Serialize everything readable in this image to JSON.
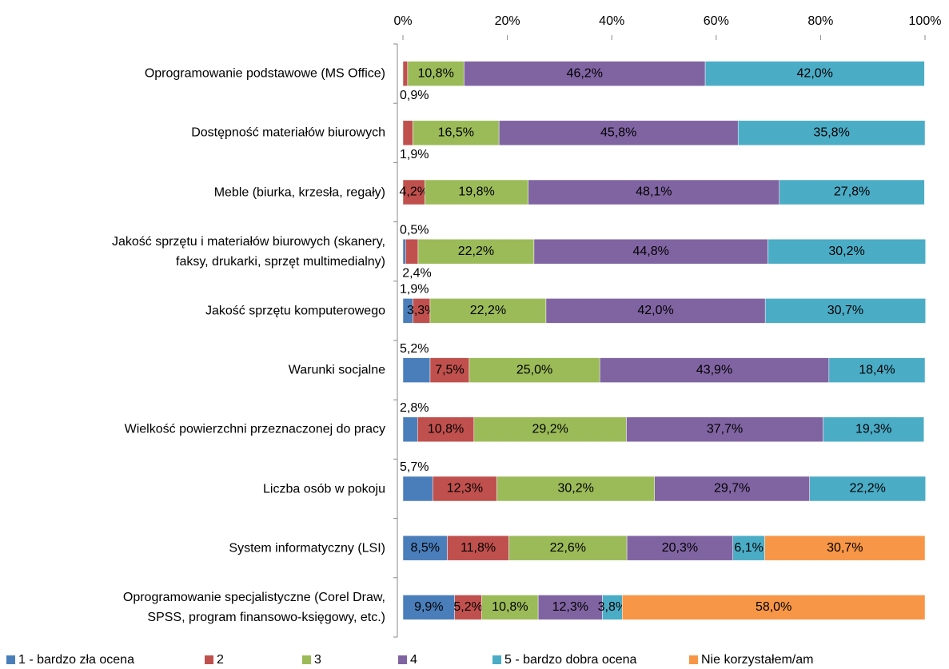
{
  "chart_data": {
    "type": "stacked-bar-horizontal",
    "categories": [
      "Oprogramowanie podstawowe (MS Office)",
      "Dostępność materiałów biurowych",
      "Meble (biurka, krzesła, regały)",
      "Jakość sprzętu i materiałów biurowych (skanery,\nfaksy, drukarki, sprzęt multimedialny)",
      "Jakość sprzętu komputerowego",
      "Warunki socjalne",
      "Wielkość powierzchni przeznaczonej do pracy",
      "Liczba osób w pokoju",
      "System informatyczny (LSI)",
      "Oprogramowanie specjalistyczne (Corel Draw,\nSPSS, program finansowo-księgowy, etc.)"
    ],
    "series": [
      {
        "name": "1 - bardzo zła ocena",
        "color": "#4a7ebb",
        "values": [
          null,
          null,
          null,
          0.5,
          1.9,
          5.2,
          2.8,
          5.7,
          8.5,
          9.9
        ],
        "value_labels": [
          null,
          null,
          null,
          "0,5%",
          "1,9%",
          "5,2%",
          "2,8%",
          "5,7%",
          "8,5%",
          "9,9%"
        ]
      },
      {
        "name": "2",
        "color": "#c0504d",
        "values": [
          0.9,
          1.9,
          4.2,
          2.4,
          3.3,
          7.5,
          10.8,
          12.3,
          11.8,
          5.2
        ],
        "value_labels": [
          "0,9%",
          "1,9%",
          "4,2%",
          "2,4%",
          "3,3%",
          "7,5%",
          "10,8%",
          "12,3%",
          "11,8%",
          "5,2%"
        ]
      },
      {
        "name": "3",
        "color": "#9bbb59",
        "values": [
          10.8,
          16.5,
          19.8,
          22.2,
          22.2,
          25.0,
          29.2,
          30.2,
          22.6,
          10.8
        ],
        "value_labels": [
          "10,8%",
          "16,5%",
          "19,8%",
          "22,2%",
          "22,2%",
          "25,0%",
          "29,2%",
          "30,2%",
          "22,6%",
          "10,8%"
        ]
      },
      {
        "name": "4",
        "color": "#8064a2",
        "values": [
          46.2,
          45.8,
          48.1,
          44.8,
          42.0,
          43.9,
          37.7,
          29.7,
          20.3,
          12.3
        ],
        "value_labels": [
          "46,2%",
          "45,8%",
          "48,1%",
          "44,8%",
          "42,0%",
          "43,9%",
          "37,7%",
          "29,7%",
          "20,3%",
          "12,3%"
        ]
      },
      {
        "name": "5 - bardzo dobra ocena",
        "color": "#4bacc6",
        "values": [
          42.0,
          35.8,
          27.8,
          30.2,
          30.7,
          18.4,
          19.3,
          22.2,
          6.1,
          3.8
        ],
        "value_labels": [
          "42,0%",
          "35,8%",
          "27,8%",
          "30,2%",
          "30,7%",
          "18,4%",
          "19,3%",
          "22,2%",
          "6,1%",
          "3,8%"
        ]
      },
      {
        "name": "Nie korzystałem/am",
        "color": "#f79646",
        "values": [
          null,
          null,
          null,
          null,
          null,
          null,
          null,
          null,
          30.7,
          58.0
        ],
        "value_labels": [
          null,
          null,
          null,
          null,
          null,
          null,
          null,
          null,
          "30,7%",
          "58,0%"
        ]
      }
    ],
    "xlim": [
      0,
      100
    ],
    "xticks": [
      {
        "value": 0,
        "label": "0%"
      },
      {
        "value": 20,
        "label": "20%"
      },
      {
        "value": 40,
        "label": "40%"
      },
      {
        "value": 60,
        "label": "60%"
      },
      {
        "value": 80,
        "label": "80%"
      },
      {
        "value": 100,
        "label": "100%"
      }
    ],
    "legend": "bottom"
  }
}
